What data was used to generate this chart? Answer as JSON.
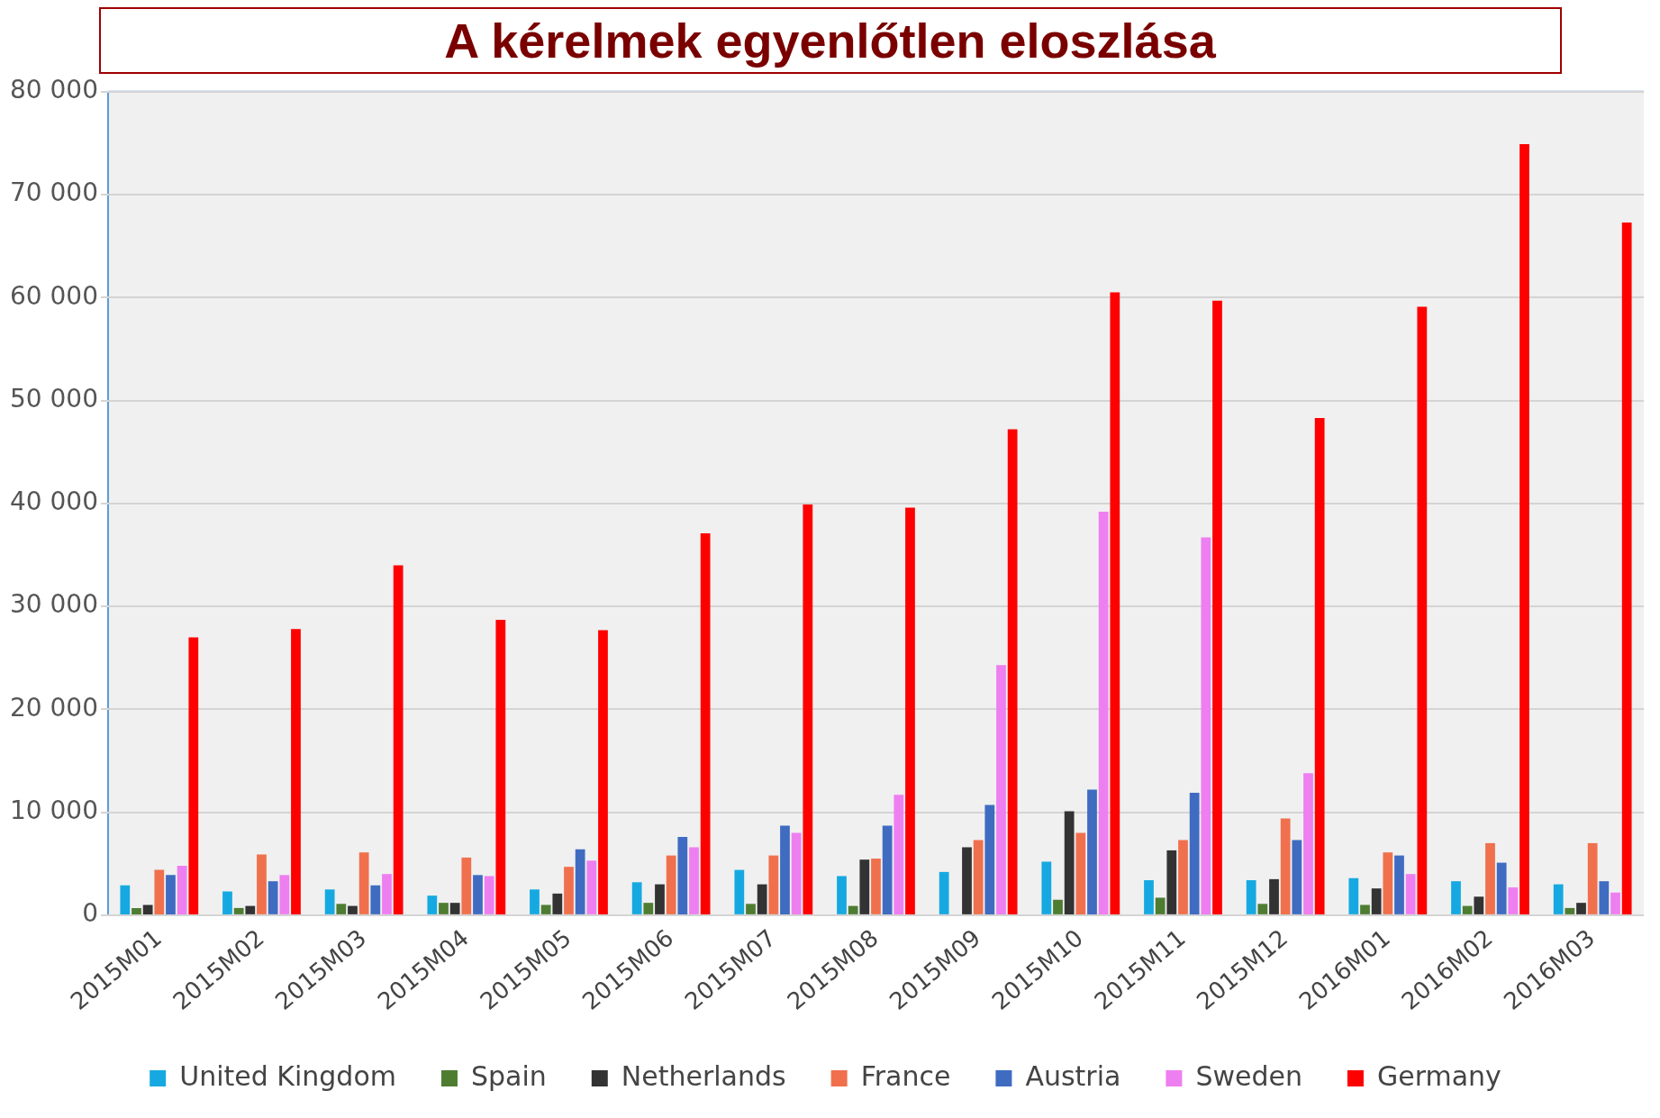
{
  "chart_data": {
    "type": "bar",
    "title": "A kérelmek egyenlőtlen eloszlása",
    "categories": [
      "2015M01",
      "2015M02",
      "2015M03",
      "2015M04",
      "2015M05",
      "2015M06",
      "2015M07",
      "2015M08",
      "2015M09",
      "2015M10",
      "2015M11",
      "2015M12",
      "2016M01",
      "2016M02",
      "2016M03"
    ],
    "series": [
      {
        "name": "United Kingdom",
        "color": "#16a9e1",
        "values": [
          2900,
          2300,
          2500,
          1900,
          2500,
          3200,
          4400,
          3800,
          4200,
          5200,
          3400,
          3400,
          3600,
          3300,
          3000
        ]
      },
      {
        "name": "Spain",
        "color": "#4e7d32",
        "values": [
          700,
          700,
          1100,
          1200,
          1000,
          1200,
          1100,
          900,
          null,
          1500,
          1700,
          1100,
          1000,
          900,
          700
        ]
      },
      {
        "name": "Netherlands",
        "color": "#333333",
        "values": [
          1000,
          900,
          900,
          1200,
          2100,
          3000,
          3000,
          5400,
          6600,
          10100,
          6300,
          3500,
          2600,
          1800,
          1200
        ]
      },
      {
        "name": "France",
        "color": "#f0704d",
        "values": [
          4400,
          5900,
          6100,
          5600,
          4700,
          5800,
          5800,
          5500,
          7300,
          8000,
          7300,
          9400,
          6100,
          7000,
          7000
        ]
      },
      {
        "name": "Austria",
        "color": "#3f6cc1",
        "values": [
          3900,
          3300,
          2900,
          3900,
          6400,
          7600,
          8700,
          8700,
          10700,
          12200,
          11900,
          7300,
          5800,
          5100,
          3300
        ]
      },
      {
        "name": "Sweden",
        "color": "#ee7ff0",
        "values": [
          4800,
          3900,
          4000,
          3800,
          5300,
          6600,
          8000,
          11700,
          24300,
          39200,
          36700,
          13800,
          4000,
          2700,
          2200
        ]
      },
      {
        "name": "Germany",
        "color": "#ff0000",
        "values": [
          27000,
          27800,
          34000,
          28700,
          27700,
          37100,
          39900,
          39600,
          47200,
          60500,
          59700,
          48300,
          59100,
          74900,
          67300
        ]
      }
    ],
    "ylim": [
      0,
      80000
    ],
    "yticks": [
      {
        "value": 0,
        "label": "0"
      },
      {
        "value": 10000,
        "label": "10 000"
      },
      {
        "value": 20000,
        "label": "20 000"
      },
      {
        "value": 30000,
        "label": "30 000"
      },
      {
        "value": 40000,
        "label": "40 000"
      },
      {
        "value": 50000,
        "label": "50 000"
      },
      {
        "value": 60000,
        "label": "60 000"
      },
      {
        "value": 70000,
        "label": "70 000"
      },
      {
        "value": 80000,
        "label": "80 000"
      }
    ],
    "grid": "y",
    "legend": "bottom"
  }
}
